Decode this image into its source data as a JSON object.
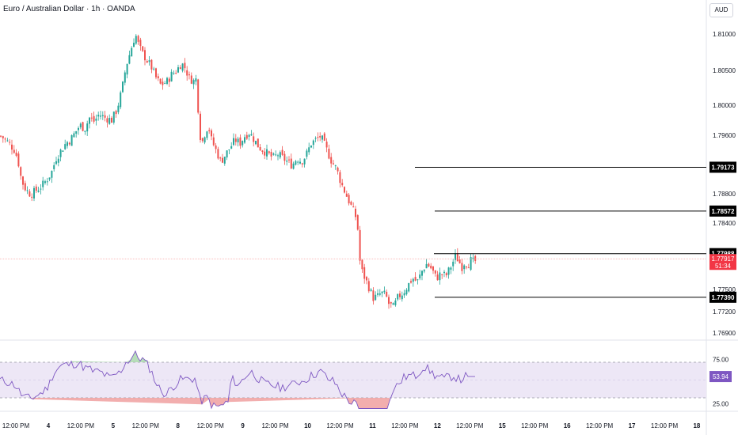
{
  "header": {
    "title": "Euro / Australian Dollar · 1h · OANDA",
    "currency_button": "AUD"
  },
  "colors": {
    "up": "#26a69a",
    "down": "#ef5350",
    "level_line": "#000000",
    "rsi_line": "#7e57c2",
    "rsi_band": "#ede7f6",
    "current_price_bg": "#f23645",
    "rsi_badge_bg": "#7e57c2",
    "level_badge_bg": "#000000"
  },
  "price_axis": {
    "ticks": [
      "1.81000",
      "1.80500",
      "1.80000",
      "1.79600",
      "1.78800",
      "1.78400",
      "1.77500",
      "1.77200",
      "1.76900"
    ]
  },
  "levels": [
    {
      "label": "1.79173",
      "value": 1.79173
    },
    {
      "label": "1.78572",
      "value": 1.78572
    },
    {
      "label": "1.77988",
      "value": 1.77988
    },
    {
      "label": "1.77390",
      "value": 1.7739
    }
  ],
  "current_price": {
    "label": "1.77917",
    "countdown": "51:34",
    "value": 1.77917
  },
  "rsi": {
    "value_label": "53.94",
    "ticks": [
      "75.00",
      "25.00"
    ],
    "upper": 70,
    "lower": 30
  },
  "time_axis": {
    "labels": [
      "12:00 PM",
      "4",
      "12:00 PM",
      "5",
      "12:00 PM",
      "8",
      "12:00 PM",
      "9",
      "12:00 PM",
      "10",
      "12:00 PM",
      "11",
      "12:00 PM",
      "12",
      "12:00 PM",
      "15",
      "12:00 PM",
      "16",
      "12:00 PM",
      "17",
      "12:00 PM",
      "18"
    ]
  },
  "chart_data": {
    "type": "candlestick",
    "symbol": "Euro / Australian Dollar · 1h · OANDA",
    "close_path": [
      [
        0,
        1.796
      ],
      [
        6,
        1.7955
      ],
      [
        12,
        1.7948
      ],
      [
        18,
        1.794
      ],
      [
        22,
        1.7925
      ],
      [
        26,
        1.79
      ],
      [
        30,
        1.789
      ],
      [
        34,
        1.7884
      ],
      [
        38,
        1.788
      ],
      [
        44,
        1.7885
      ],
      [
        52,
        1.7892
      ],
      [
        58,
        1.79
      ],
      [
        64,
        1.791
      ],
      [
        70,
        1.793
      ],
      [
        76,
        1.794
      ],
      [
        82,
        1.795
      ],
      [
        88,
        1.7955
      ],
      [
        94,
        1.7965
      ],
      [
        100,
        1.7975
      ],
      [
        106,
        1.797
      ],
      [
        112,
        1.7985
      ],
      [
        118,
        1.798
      ],
      [
        124,
        1.799
      ],
      [
        132,
        1.7985
      ],
      [
        140,
        1.7982
      ],
      [
        146,
        1.7995
      ],
      [
        150,
        1.801
      ],
      [
        154,
        1.803
      ],
      [
        158,
        1.8055
      ],
      [
        162,
        1.807
      ],
      [
        166,
        1.8085
      ],
      [
        170,
        1.81
      ],
      [
        174,
        1.8085
      ],
      [
        178,
        1.8075
      ],
      [
        184,
        1.8065
      ],
      [
        190,
        1.8055
      ],
      [
        196,
        1.804
      ],
      [
        202,
        1.803
      ],
      [
        210,
        1.8035
      ],
      [
        216,
        1.8045
      ],
      [
        222,
        1.805
      ],
      [
        228,
        1.806
      ],
      [
        232,
        1.8055
      ],
      [
        238,
        1.804
      ],
      [
        244,
        1.8035
      ],
      [
        248,
        1.804
      ],
      [
        250,
        1.797
      ],
      [
        254,
        1.795
      ],
      [
        258,
        1.7965
      ],
      [
        262,
        1.7975
      ],
      [
        266,
        1.7955
      ],
      [
        272,
        1.794
      ],
      [
        278,
        1.7925
      ],
      [
        284,
        1.7935
      ],
      [
        290,
        1.7945
      ],
      [
        296,
        1.7955
      ],
      [
        302,
        1.795
      ],
      [
        308,
        1.796
      ],
      [
        314,
        1.7965
      ],
      [
        320,
        1.7955
      ],
      [
        326,
        1.7945
      ],
      [
        332,
        1.794
      ],
      [
        338,
        1.7935
      ],
      [
        344,
        1.793
      ],
      [
        350,
        1.7935
      ],
      [
        356,
        1.793
      ],
      [
        362,
        1.7925
      ],
      [
        368,
        1.792
      ],
      [
        374,
        1.793
      ],
      [
        380,
        1.7925
      ],
      [
        386,
        1.7935
      ],
      [
        392,
        1.795
      ],
      [
        398,
        1.7955
      ],
      [
        404,
        1.796
      ],
      [
        408,
        1.795
      ],
      [
        412,
        1.794
      ],
      [
        418,
        1.7925
      ],
      [
        424,
        1.7915
      ],
      [
        430,
        1.7895
      ],
      [
        436,
        1.788
      ],
      [
        442,
        1.7865
      ],
      [
        448,
        1.785
      ],
      [
        452,
        1.7825
      ],
      [
        454,
        1.778
      ],
      [
        458,
        1.777
      ],
      [
        462,
        1.776
      ],
      [
        466,
        1.775
      ],
      [
        470,
        1.7738
      ],
      [
        476,
        1.774
      ],
      [
        480,
        1.7745
      ],
      [
        486,
        1.7742
      ],
      [
        490,
        1.773
      ],
      [
        496,
        1.7725
      ],
      [
        502,
        1.774
      ],
      [
        508,
        1.7745
      ],
      [
        514,
        1.7755
      ],
      [
        520,
        1.7765
      ],
      [
        526,
        1.776
      ],
      [
        532,
        1.7775
      ],
      [
        538,
        1.7785
      ],
      [
        544,
        1.7778
      ],
      [
        550,
        1.7765
      ],
      [
        556,
        1.7772
      ],
      [
        562,
        1.7768
      ],
      [
        566,
        1.7776
      ],
      [
        570,
        1.7785
      ],
      [
        574,
        1.7795
      ],
      [
        578,
        1.779
      ],
      [
        582,
        1.778
      ],
      [
        586,
        1.7788
      ],
      [
        590,
        1.7784
      ],
      [
        594,
        1.779
      ],
      [
        598,
        1.7786
      ],
      [
        601,
        1.7792
      ]
    ],
    "levels": [
      1.79173,
      1.78572,
      1.77988,
      1.7739
    ],
    "current_price": 1.77917,
    "rsi_current": 53.94,
    "rsi_bands": [
      30,
      70
    ]
  }
}
